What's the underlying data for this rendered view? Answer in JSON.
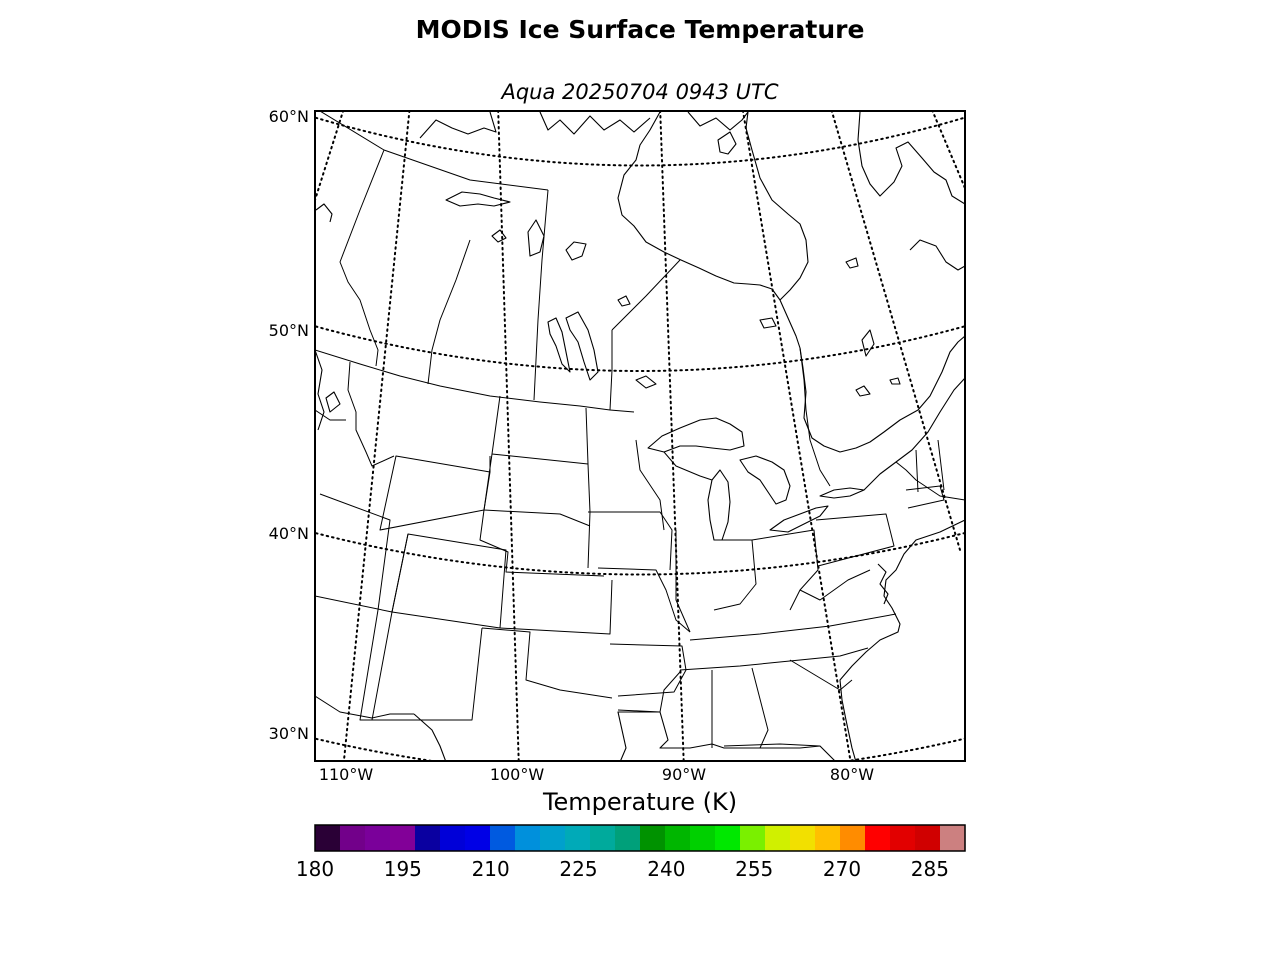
{
  "title": "MODIS Ice Surface Temperature",
  "subtitle": "Aqua 20250704 0943 UTC",
  "map": {
    "type": "map",
    "projection": "conic",
    "grid": true,
    "lat_labels": [
      "60°N",
      "50°N",
      "40°N",
      "30°N"
    ],
    "lon_labels": [
      "110°W",
      "100°W",
      "90°W",
      "80°W"
    ],
    "data_layer": "none visible"
  },
  "colorbar": {
    "label": "Temperature (K)",
    "min": 180,
    "max": 291,
    "step": 3.75,
    "tick_labels": [
      "180",
      "195",
      "210",
      "225",
      "240",
      "255",
      "270",
      "285"
    ],
    "colors": [
      "#2a0036",
      "#72008a",
      "#7a009a",
      "#820098",
      "#0a00a0",
      "#0000d8",
      "#0000e6",
      "#005ae0",
      "#0090dc",
      "#00a0cc",
      "#00aab8",
      "#00aa9c",
      "#00a07a",
      "#009200",
      "#00b600",
      "#00d000",
      "#00e800",
      "#7af000",
      "#d0f000",
      "#f2e000",
      "#ffc000",
      "#ff8c00",
      "#ff0000",
      "#e20000",
      "#d00000",
      "#cc8080"
    ]
  }
}
